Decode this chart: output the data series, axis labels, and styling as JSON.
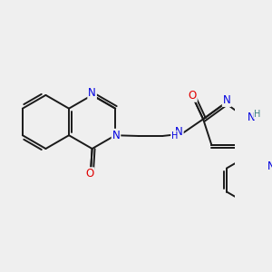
{
  "bg_color": "#efefef",
  "bond_color": "#1a1a1a",
  "bond_width": 1.4,
  "atom_colors": {
    "N": "#0000e0",
    "O": "#e00000",
    "NH_pyrazole": "#3a8080",
    "C": "#1a1a1a"
  },
  "font_size": 8.5,
  "font_size_small": 7.0
}
